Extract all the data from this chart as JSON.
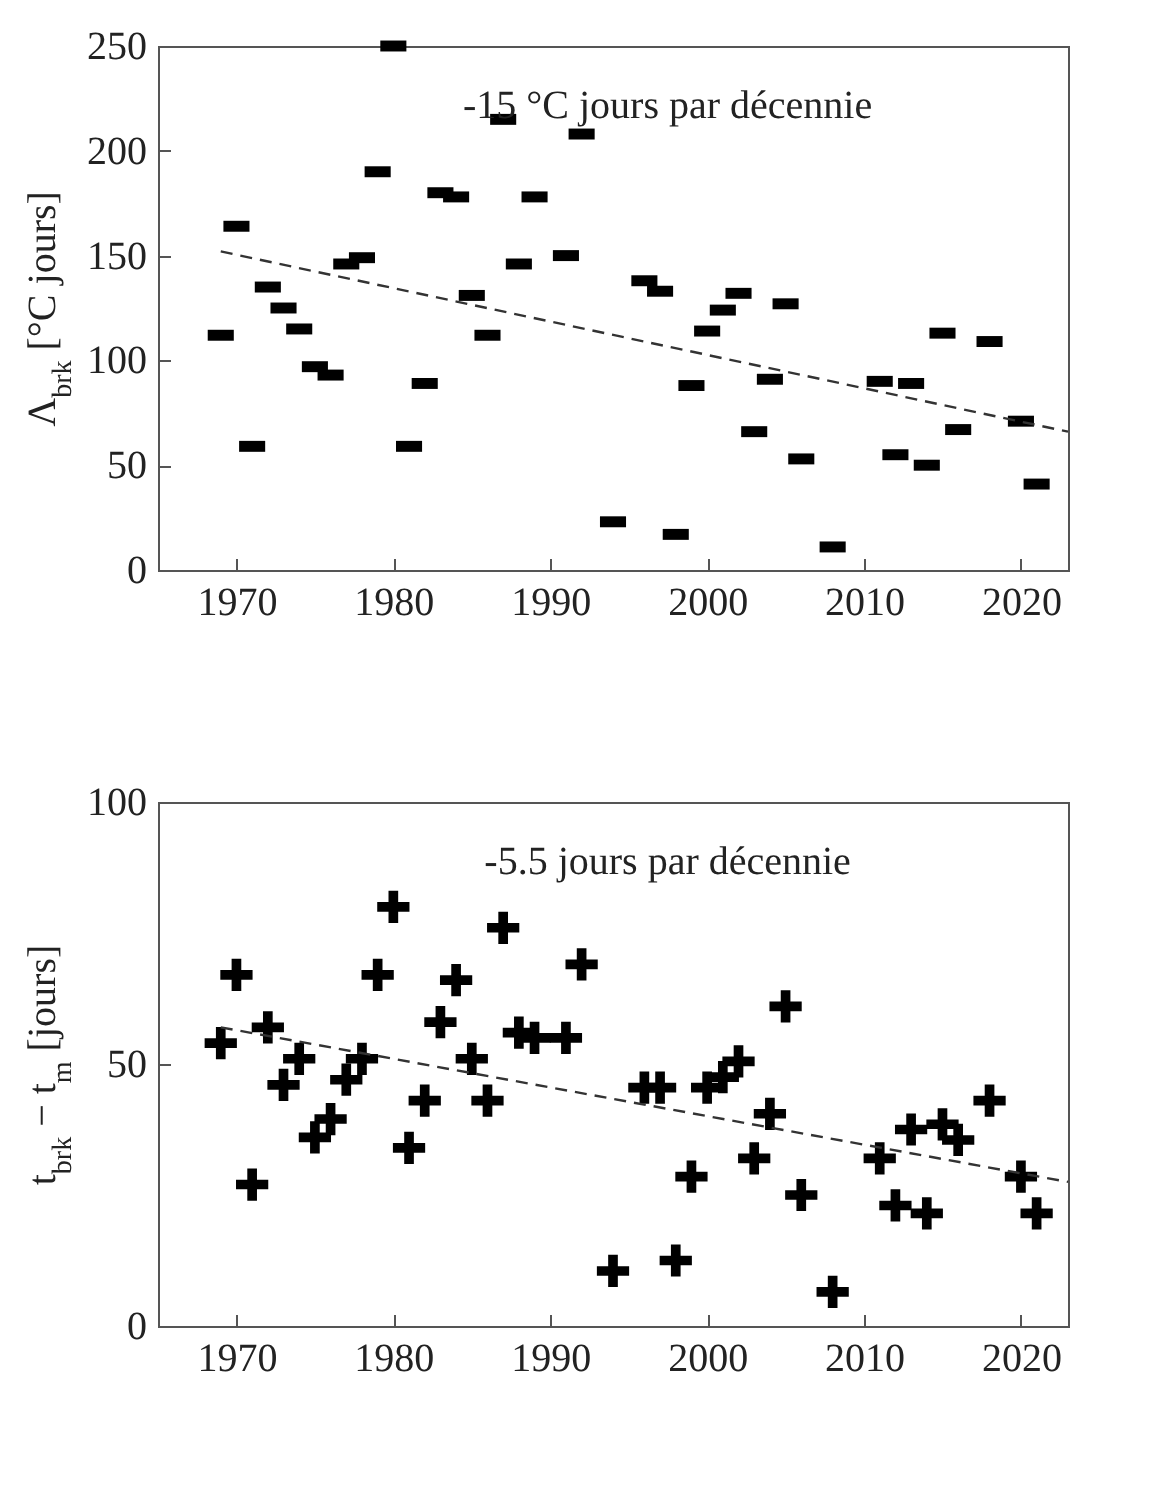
{
  "chart_data": [
    {
      "type": "scatter",
      "ylabel": "Λ$_{brk}$ [°C jours]",
      "annotations": [
        "-15 °C jours par décennie"
      ],
      "xlim": [
        1965,
        2023
      ],
      "xticks": [
        1970,
        1980,
        1990,
        2000,
        2010,
        2020
      ],
      "ylim": [
        0,
        250
      ],
      "yticks": [
        0,
        50,
        100,
        150,
        200,
        250
      ],
      "grid": false,
      "series": [
        {
          "type": "scatter",
          "marker": "square",
          "color": "#000000",
          "x": [
            1969,
            1970,
            1971,
            1972,
            1973,
            1974,
            1975,
            1976,
            1977,
            1978,
            1979,
            1980,
            1981,
            1982,
            1983,
            1984,
            1985,
            1986,
            1987,
            1988,
            1989,
            1991,
            1992,
            1994,
            1996,
            1997,
            1998,
            1999,
            2000,
            2001,
            2002,
            2003,
            2004,
            2005,
            2006,
            2008,
            2011,
            2012,
            2013,
            2014,
            2015,
            2016,
            2018,
            2020,
            2021
          ],
          "values": [
            112,
            164,
            59,
            135,
            125,
            115,
            97,
            93,
            146,
            149,
            190,
            250,
            59,
            89,
            180,
            178,
            131,
            112,
            215,
            146,
            178,
            150,
            208,
            23,
            138,
            133,
            17,
            88,
            114,
            124,
            132,
            66,
            91,
            127,
            53,
            11,
            90,
            55,
            89,
            50,
            113,
            67,
            109,
            71,
            41
          ]
        },
        {
          "type": "line",
          "marker": "none",
          "line_style": "dashed",
          "color": "#333333",
          "x": [
            1969,
            2023
          ],
          "values": [
            152,
            66
          ]
        }
      ]
    },
    {
      "type": "scatter",
      "ylabel": "t$_{brk}$ − t$_{m}$ [jours]",
      "annotations": [
        "-5.5 jours par décennie"
      ],
      "xlim": [
        1965,
        2023
      ],
      "xticks": [
        1970,
        1980,
        1990,
        2000,
        2010,
        2020
      ],
      "ylim": [
        0,
        100
      ],
      "yticks": [
        0,
        50,
        100
      ],
      "grid": false,
      "series": [
        {
          "type": "scatter",
          "marker": "cross",
          "color": "#000000",
          "x": [
            1969,
            1970,
            1971,
            1972,
            1973,
            1974,
            1975,
            1976,
            1977,
            1978,
            1979,
            1980,
            1981,
            1982,
            1983,
            1984,
            1985,
            1986,
            1987,
            1988,
            1989,
            1991,
            1992,
            1994,
            1996,
            1997,
            1998,
            1999,
            2000,
            2001,
            2002,
            2003,
            2004,
            2005,
            2006,
            2008,
            2011,
            2012,
            2013,
            2014,
            2015,
            2016,
            2018,
            2020,
            2021
          ],
          "values": [
            54,
            67,
            27,
            57,
            46,
            51,
            36,
            39.5,
            47,
            51,
            67,
            80,
            34,
            43,
            58,
            66,
            51,
            43,
            76,
            56,
            55,
            55,
            69,
            10.5,
            45.5,
            45.5,
            12.5,
            28.5,
            45.5,
            47.5,
            50.5,
            32,
            40.5,
            61,
            25,
            6.5,
            32,
            23,
            37.5,
            21.5,
            38.5,
            35.5,
            43,
            28.5,
            21.5
          ]
        },
        {
          "type": "line",
          "marker": "none",
          "line_style": "dashed",
          "color": "#333333",
          "x": [
            1969,
            2023
          ],
          "values": [
            57,
            27.5
          ]
        }
      ]
    }
  ]
}
